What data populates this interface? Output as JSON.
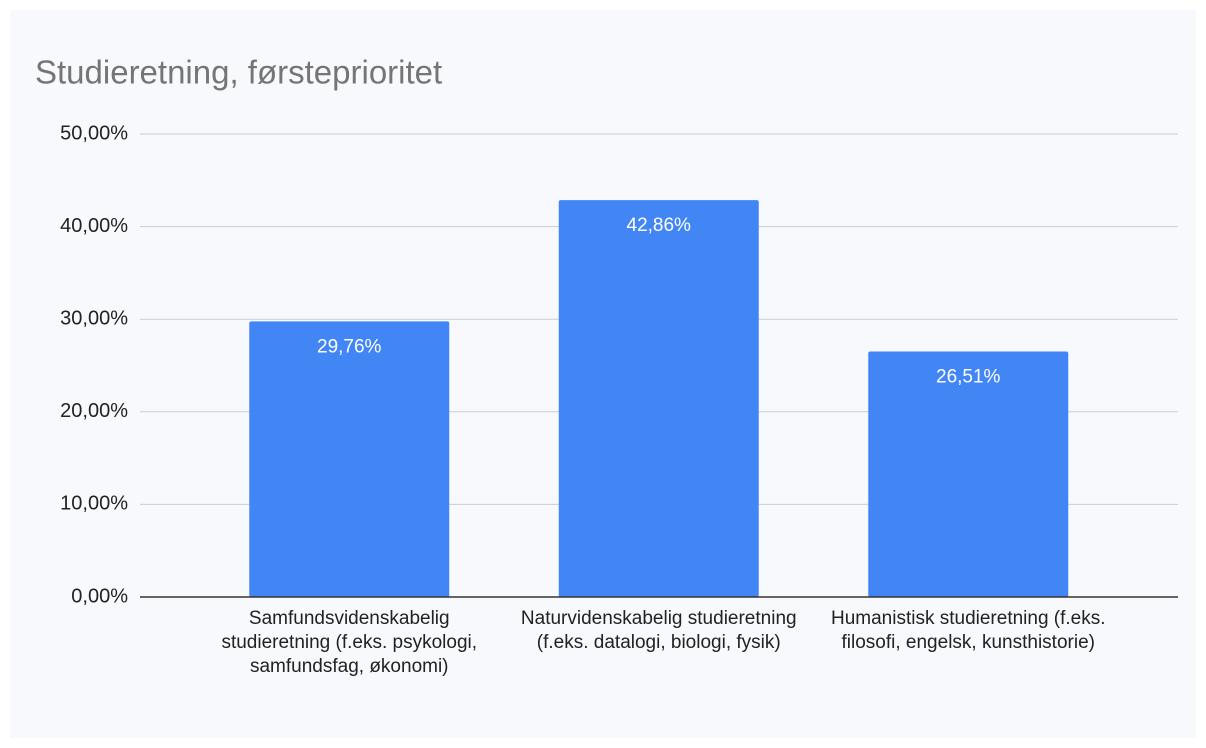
{
  "chart_data": {
    "type": "bar",
    "title": "Studieretning, førsteprioritet",
    "categories": [
      "Samfundsvidenskabelig studieretning (f.eks. psykologi, samfundsfag, økonomi)",
      "Naturvidenskabelig studieretning (f.eks. datalogi, biologi, fysik)",
      "Humanistisk studieretning (f.eks. filosofi, engelsk, kunsthistorie)"
    ],
    "values": [
      29.76,
      42.86,
      26.51
    ],
    "value_labels": [
      "29,76%",
      "42,86%",
      "26,51%"
    ],
    "color": "#4285f4",
    "ylim": [
      0,
      50
    ],
    "yticks": [
      {
        "value": 0,
        "label": "0,00%"
      },
      {
        "value": 10,
        "label": "10,00%"
      },
      {
        "value": 20,
        "label": "20,00%"
      },
      {
        "value": 30,
        "label": "30,00%"
      },
      {
        "value": 40,
        "label": "40,00%"
      },
      {
        "value": 50,
        "label": "50,00%"
      }
    ],
    "grid": true
  }
}
